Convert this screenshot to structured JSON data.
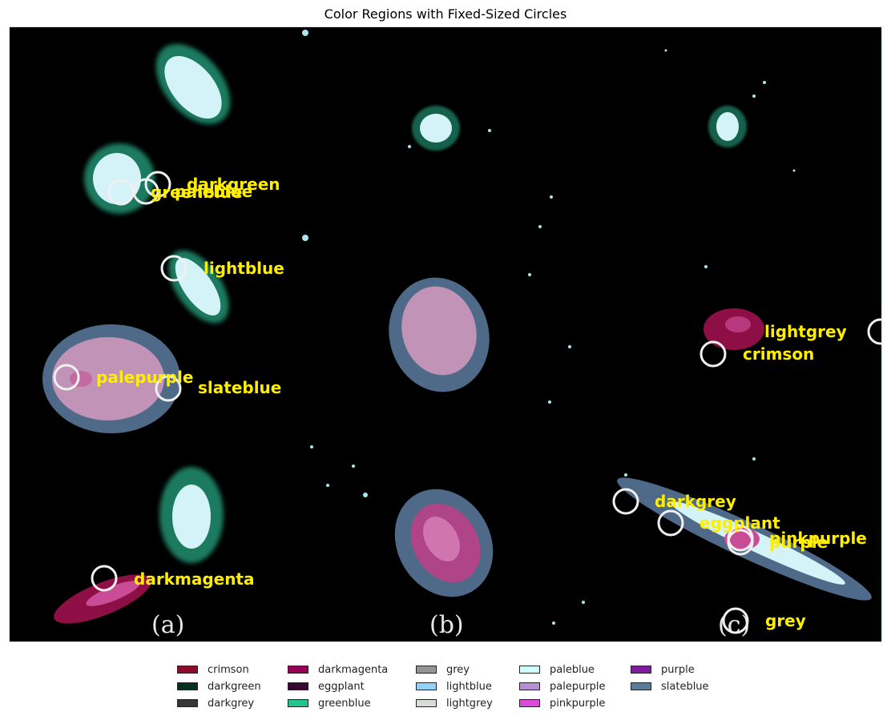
{
  "title": "Color Regions with Fixed-Sized Circles",
  "panel_labels": [
    "(a)",
    "(b)",
    "(c)"
  ],
  "annotations": [
    {
      "label": "darkgreen"
    },
    {
      "label": "paleblue"
    },
    {
      "label": "greenblue"
    },
    {
      "label": "lightblue"
    },
    {
      "label": "palepurple"
    },
    {
      "label": "slateblue"
    },
    {
      "label": "darkmagenta"
    },
    {
      "label": "lightgrey"
    },
    {
      "label": "crimson"
    },
    {
      "label": "darkgrey"
    },
    {
      "label": "eggplant"
    },
    {
      "label": "pinkpurple"
    },
    {
      "label": "purple"
    },
    {
      "label": "grey"
    }
  ],
  "legend": [
    {
      "label": "crimson",
      "color": "#8c0b2a"
    },
    {
      "label": "darkgreen",
      "color": "#05321e"
    },
    {
      "label": "darkgrey",
      "color": "#363737"
    },
    {
      "label": "darkmagenta",
      "color": "#960056"
    },
    {
      "label": "eggplant",
      "color": "#380835"
    },
    {
      "label": "greenblue",
      "color": "#23c48b"
    },
    {
      "label": "grey",
      "color": "#929591"
    },
    {
      "label": "lightblue",
      "color": "#95d0fc"
    },
    {
      "label": "lightgrey",
      "color": "#d8dcd6"
    },
    {
      "label": "paleblue",
      "color": "#d0fefe"
    },
    {
      "label": "palepurple",
      "color": "#b790d4"
    },
    {
      "label": "pinkpurple",
      "color": "#db4bda"
    },
    {
      "label": "purple",
      "color": "#7e1e9c"
    },
    {
      "label": "slateblue",
      "color": "#5b7c99"
    }
  ]
}
